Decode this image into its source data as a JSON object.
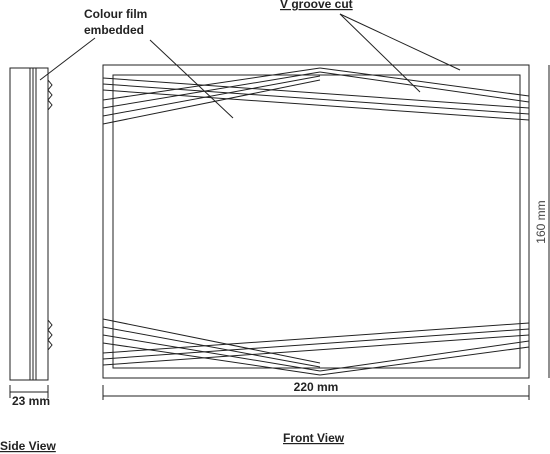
{
  "labels": {
    "film_line1": "Colour film",
    "film_line2": "embedded",
    "groove": "V groove cut",
    "height": "160 mm",
    "width": "220 mm",
    "depth": "23 mm",
    "side_view": "Side View",
    "front_view": "Front View"
  }
}
